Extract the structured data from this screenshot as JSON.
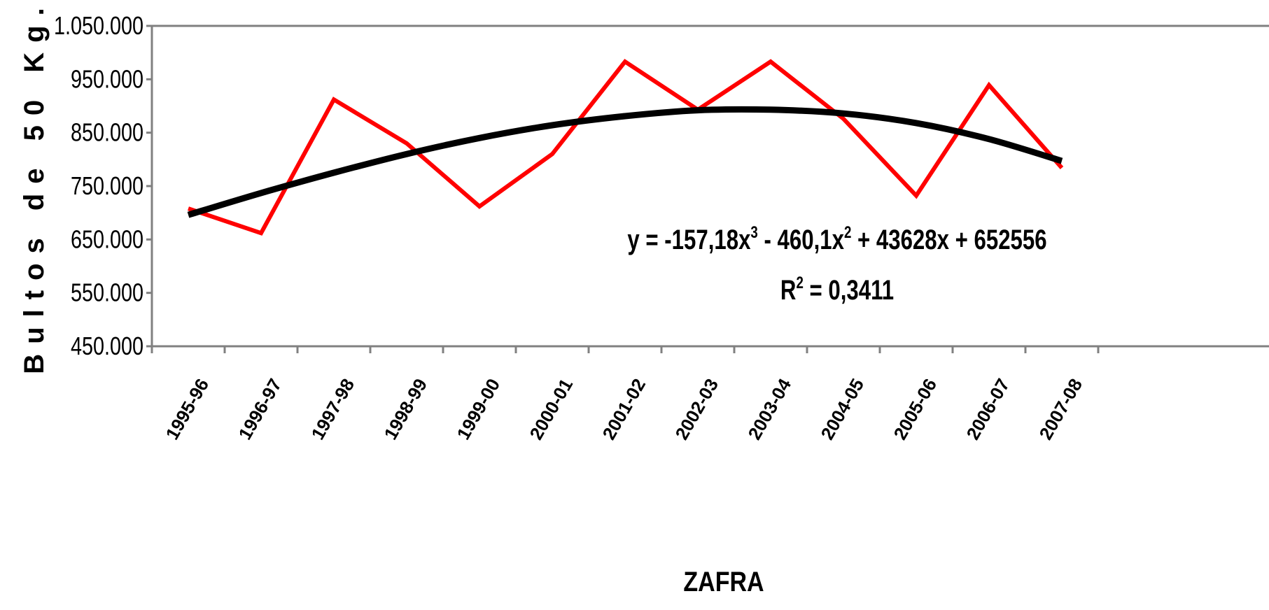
{
  "chart_data": {
    "type": "line",
    "categories": [
      "1995-96",
      "1996-97",
      "1997-98",
      "1998-99",
      "1999-00",
      "2000-01",
      "2001-02",
      "2002-03",
      "2003-04",
      "2004-05",
      "2005-06",
      "2006-07",
      "2007-08"
    ],
    "series": [
      {
        "color": "#ff0000",
        "values": [
          708000,
          662000,
          912000,
          830000,
          712000,
          810000,
          983000,
          893000,
          983000,
          876000,
          732000,
          939000,
          784000
        ]
      },
      {
        "color": "#000000",
        "values": [
          696000,
          737000,
          775000,
          810000,
          840000,
          864000,
          881000,
          892000,
          893000,
          886000,
          868000,
          838000,
          797000
        ]
      }
    ],
    "ylim": [
      450000,
      1050000
    ],
    "yticks": [
      {
        "value": 450000,
        "label": "450.000"
      },
      {
        "value": 550000,
        "label": "550.000"
      },
      {
        "value": 650000,
        "label": "650.000"
      },
      {
        "value": 750000,
        "label": "750.000"
      },
      {
        "value": 850000,
        "label": "850.000"
      },
      {
        "value": 950000,
        "label": "950.000"
      },
      {
        "value": 1050000,
        "label": "1.050.000"
      }
    ],
    "grid": false,
    "y_label": "Bultos de 50 Kg.",
    "x_label": "ZAFRA",
    "equation": [
      "y = -157,18x",
      "3",
      " - 460,1x",
      "2",
      " + 43628x + 652556"
    ],
    "r_squared": [
      "R",
      "2",
      " = 0,3411"
    ]
  }
}
